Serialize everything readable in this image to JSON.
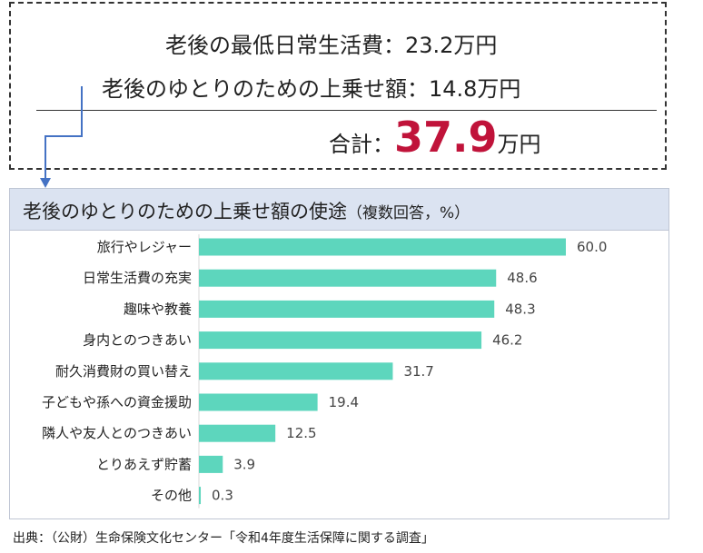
{
  "summary": {
    "line1": "老後の最低日常生活費：23.2万円",
    "line2": "老後のゆとりのための上乗せ額：14.8万円",
    "total_label": "合計：",
    "total_value": "37.9",
    "total_unit": "万円"
  },
  "chart_header": {
    "title": "老後のゆとりのための上乗せ額の使途",
    "subtitle": "（複数回答，%）"
  },
  "source": "出典：（公財）生命保険文化センター「令和4年度生活保障に関する調査」",
  "colors": {
    "bar": "#5dd6bd",
    "accent": "#c0133a",
    "header_bg": "#dbe3f1",
    "connector": "#4472c4"
  },
  "chart_data": {
    "type": "bar",
    "orientation": "horizontal",
    "title": "老後のゆとりのための上乗せ額の使途（複数回答，%）",
    "categories": [
      "旅行やレジャー",
      "日常生活費の充実",
      "趣味や教養",
      "身内とのつきあい",
      "耐久消費財の買い替え",
      "子どもや孫への資金援助",
      "隣人や友人とのつきあい",
      "とりあえず貯蓄",
      "その他"
    ],
    "values": [
      60.0,
      48.6,
      48.3,
      46.2,
      31.7,
      19.4,
      12.5,
      3.9,
      0.3
    ],
    "value_labels": [
      "60.0",
      "48.6",
      "48.3",
      "46.2",
      "31.7",
      "19.4",
      "12.5",
      "3.9",
      "0.3"
    ],
    "xlim": [
      0,
      60
    ],
    "grid": false
  }
}
